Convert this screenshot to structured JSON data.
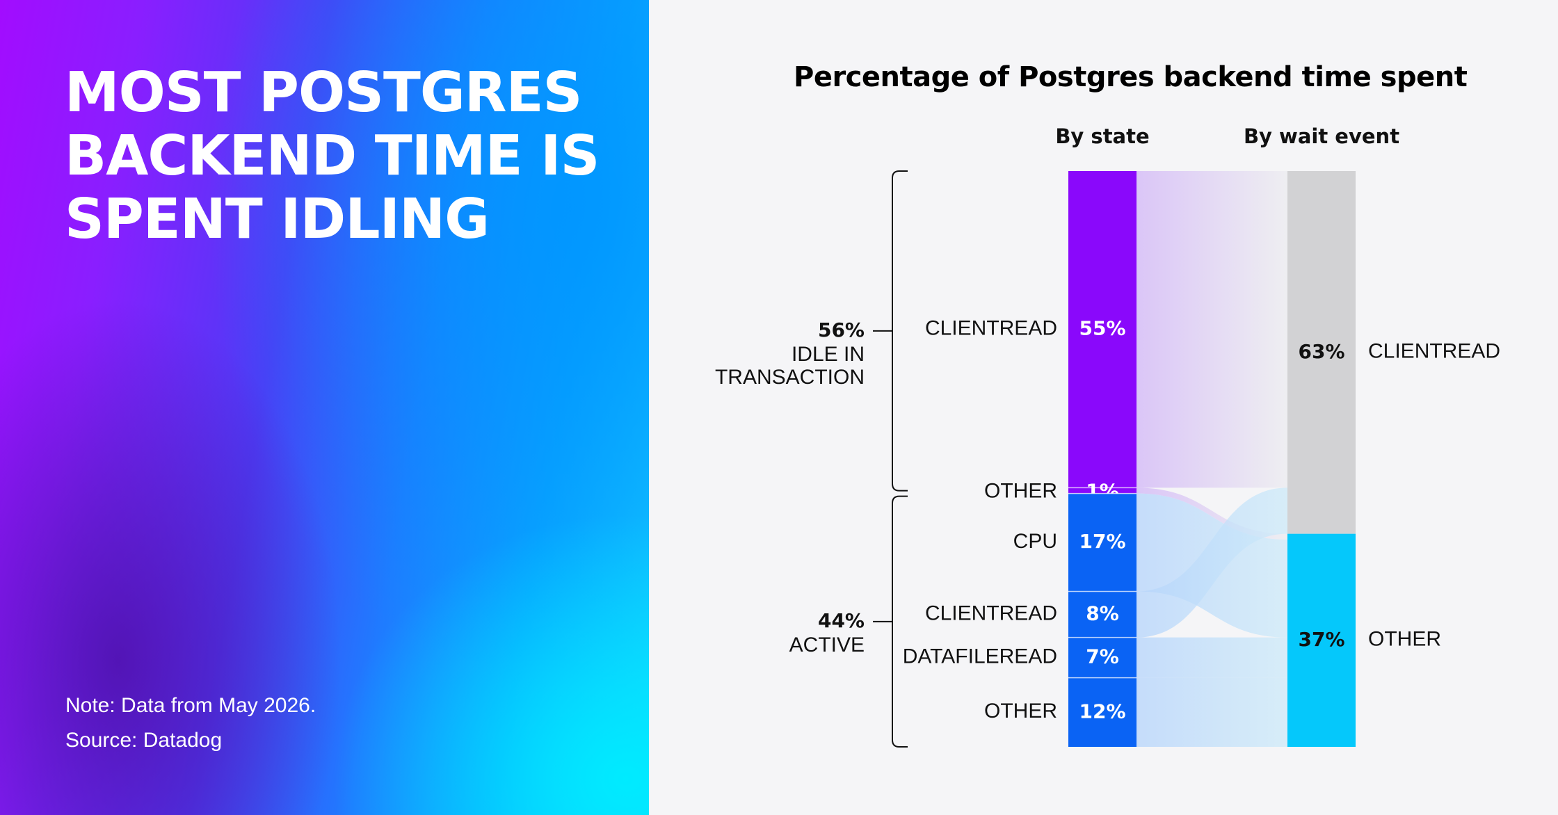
{
  "headline": [
    "MOST POSTGRES",
    "BACKEND TIME IS",
    "SPENT IDLING"
  ],
  "note": "Note: Data from May 2026.",
  "source": "Source: Datadog",
  "colors": {
    "idle": "#8a08fb",
    "active": "#0a63f4",
    "wait_clientread": "#d2d2d4",
    "wait_other": "#05c8fb"
  },
  "chart_data": {
    "type": "sankey",
    "title": "Percentage of Postgres backend time spent",
    "column_headers": {
      "left": "By state",
      "right": "By wait event"
    },
    "groups": [
      {
        "id": "idle",
        "value_label": "56%",
        "label_lines": [
          "IDLE IN",
          "TRANSACTION"
        ],
        "value": 56
      },
      {
        "id": "active",
        "value_label": "44%",
        "label_lines": [
          "ACTIVE"
        ],
        "value": 44
      }
    ],
    "left_nodes": [
      {
        "group": "idle",
        "label": "CLIENTREAD",
        "value": 55,
        "value_label": "55%"
      },
      {
        "group": "idle",
        "label": "OTHER",
        "value": 1,
        "value_label": "1%"
      },
      {
        "group": "active",
        "label": "CPU",
        "value": 17,
        "value_label": "17%"
      },
      {
        "group": "active",
        "label": "CLIENTREAD",
        "value": 8,
        "value_label": "8%"
      },
      {
        "group": "active",
        "label": "DATAFILEREAD",
        "value": 7,
        "value_label": "7%"
      },
      {
        "group": "active",
        "label": "OTHER",
        "value": 12,
        "value_label": "12%"
      }
    ],
    "right_nodes": [
      {
        "id": "clientread",
        "label": "CLIENTREAD",
        "value": 63,
        "value_label": "63%"
      },
      {
        "id": "other",
        "label": "OTHER",
        "value": 37,
        "value_label": "37%"
      }
    ],
    "links": [
      {
        "source": 0,
        "target": "clientread",
        "value": 55
      },
      {
        "source": 1,
        "target": "other",
        "value": 1
      },
      {
        "source": 2,
        "target": "other",
        "value": 17
      },
      {
        "source": 3,
        "target": "clientread",
        "value": 8
      },
      {
        "source": 4,
        "target": "other",
        "value": 7
      },
      {
        "source": 5,
        "target": "other",
        "value": 12
      }
    ]
  }
}
